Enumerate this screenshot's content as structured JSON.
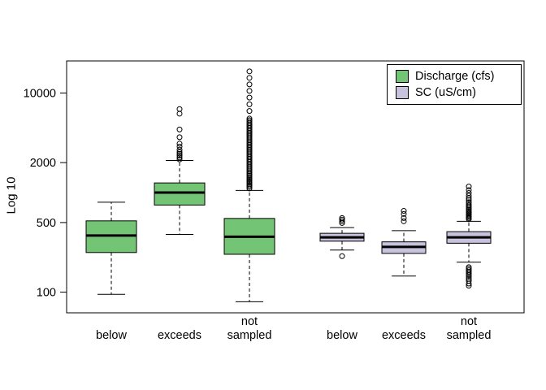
{
  "chart_data": {
    "type": "boxplot",
    "title": "",
    "ylabel": "Log 10",
    "xlabel": "",
    "yscale": "log10",
    "ylim": [
      62,
      21000
    ],
    "yticks": [
      100,
      500,
      2000,
      10000
    ],
    "grid": false,
    "categories": [
      "below",
      "exceeds",
      "not\nsampled",
      "below",
      "exceeds",
      "not\nsampled"
    ],
    "legend": {
      "position": "top-right",
      "entries": [
        {
          "label": "Discharge (cfs)",
          "color": "#74c476"
        },
        {
          "label": "SC (uS/cm)",
          "color": "#c9c2dd"
        }
      ]
    },
    "boxes": [
      {
        "category": "below",
        "series": "Discharge (cfs)",
        "color": "#74c476",
        "whisker_low": 95,
        "q1": 250,
        "median": 370,
        "q3": 520,
        "whisker_high": 800,
        "outliers": []
      },
      {
        "category": "exceeds",
        "series": "Discharge (cfs)",
        "color": "#74c476",
        "whisker_low": 380,
        "q1": 750,
        "median": 1000,
        "q3": 1250,
        "whisker_high": 2100,
        "outliers": [
          2150,
          2250,
          2350,
          2450,
          2550,
          2700,
          2900,
          3100,
          3600,
          4300,
          6200,
          6900
        ]
      },
      {
        "category": "not sampled",
        "series": "Discharge (cfs)",
        "color": "#74c476",
        "whisker_low": 80,
        "q1": 240,
        "median": 360,
        "q3": 550,
        "whisker_high": 1050,
        "outliers": [
          1100,
          1140,
          1180,
          1220,
          1260,
          1300,
          1340,
          1380,
          1430,
          1480,
          1530,
          1580,
          1640,
          1700,
          1760,
          1820,
          1890,
          1960,
          2030,
          2100,
          2180,
          2260,
          2340,
          2430,
          2520,
          2610,
          2700,
          2800,
          2900,
          3000,
          3110,
          3220,
          3340,
          3460,
          3590,
          3720,
          3860,
          4000,
          4150,
          4300,
          4460,
          4620,
          4790,
          4970,
          5150,
          5340,
          5540,
          6600,
          7700,
          9000,
          10500,
          12200,
          14200,
          16500
        ]
      },
      {
        "category": "below",
        "series": "SC (uS/cm)",
        "color": "#c9c2dd",
        "whisker_low": 265,
        "q1": 325,
        "median": 355,
        "q3": 390,
        "whisker_high": 445,
        "outliers": [
          495,
          515,
          535,
          555,
          230
        ]
      },
      {
        "category": "exceeds",
        "series": "SC (uS/cm)",
        "color": "#c9c2dd",
        "whisker_low": 145,
        "q1": 245,
        "median": 285,
        "q3": 320,
        "whisker_high": 415,
        "outliers": [
          515,
          555,
          610,
          655
        ]
      },
      {
        "category": "not sampled",
        "series": "SC (uS/cm)",
        "color": "#c9c2dd",
        "whisker_low": 200,
        "q1": 310,
        "median": 355,
        "q3": 405,
        "whisker_high": 515,
        "outliers": [
          540,
          555,
          570,
          585,
          600,
          615,
          630,
          650,
          670,
          690,
          715,
          740,
          770,
          800,
          840,
          880,
          930,
          990,
          1060,
          1150,
          178,
          172,
          166,
          160,
          154,
          148,
          142,
          136,
          130,
          122,
          116
        ]
      }
    ]
  }
}
